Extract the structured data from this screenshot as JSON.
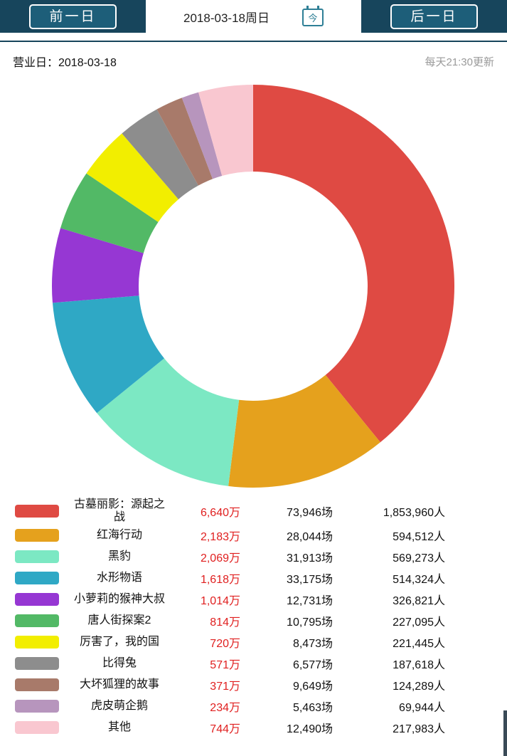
{
  "header": {
    "prev_label": "前一日",
    "date_label": "2018-03-18周日",
    "today_icon_label": "今",
    "next_label": "后一日"
  },
  "info": {
    "business_day_label": "营业日：2018-03-18",
    "update_note": "每天21:30更新"
  },
  "colors": {
    "header_bar": "#17455c",
    "button_bg": "#1d5e79",
    "revenue_text": "#e01f1f",
    "calendar_icon": "#2e7f96"
  },
  "chart_data": {
    "type": "pie",
    "style": "donut",
    "direction": "clockwise",
    "start_angle_deg": 0,
    "inner_radius_ratio": 0.57,
    "unit": "万",
    "legend_position": "bottom-table",
    "series": [
      {
        "name": "古墓丽影：源起之战",
        "value": 6640,
        "revenue": "6,640万",
        "sessions": "73,946场",
        "audience": "1,853,960人",
        "color": "#df4a43"
      },
      {
        "name": "红海行动",
        "value": 2183,
        "revenue": "2,183万",
        "sessions": "28,044场",
        "audience": "594,512人",
        "color": "#e5a11d"
      },
      {
        "name": "黑豹",
        "value": 2069,
        "revenue": "2,069万",
        "sessions": "31,913场",
        "audience": "569,273人",
        "color": "#7ce8c3"
      },
      {
        "name": "水形物语",
        "value": 1618,
        "revenue": "1,618万",
        "sessions": "33,175场",
        "audience": "514,324人",
        "color": "#2fa8c5"
      },
      {
        "name": "小萝莉的猴神大叔",
        "value": 1014,
        "revenue": "1,014万",
        "sessions": "12,731场",
        "audience": "326,821人",
        "color": "#9637d3"
      },
      {
        "name": "唐人街探案2",
        "value": 814,
        "revenue": "814万",
        "sessions": "10,795场",
        "audience": "227,095人",
        "color": "#52b966"
      },
      {
        "name": "厉害了，我的国",
        "value": 720,
        "revenue": "720万",
        "sessions": "8,473场",
        "audience": "221,445人",
        "color": "#f2ee00"
      },
      {
        "name": "比得兔",
        "value": 571,
        "revenue": "571万",
        "sessions": "6,577场",
        "audience": "187,618人",
        "color": "#8d8d8d"
      },
      {
        "name": "大坏狐狸的故事",
        "value": 371,
        "revenue": "371万",
        "sessions": "9,649场",
        "audience": "124,289人",
        "color": "#a87a6a"
      },
      {
        "name": "虎皮萌企鹅",
        "value": 234,
        "revenue": "234万",
        "sessions": "5,463场",
        "audience": "69,944人",
        "color": "#b795bd"
      },
      {
        "name": "其他",
        "value": 744,
        "revenue": "744万",
        "sessions": "12,490场",
        "audience": "217,983人",
        "color": "#f9c7d0"
      }
    ]
  }
}
